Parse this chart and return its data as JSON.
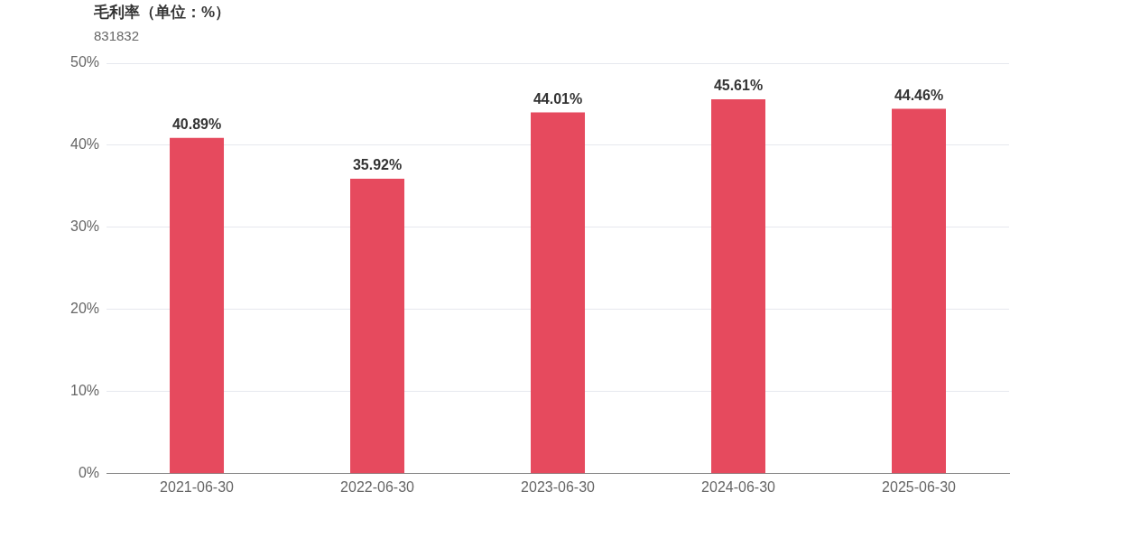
{
  "chart_data": {
    "type": "bar",
    "title": "毛利率（单位：%）",
    "subtitle": "831832",
    "categories": [
      "2021-06-30",
      "2022-06-30",
      "2023-06-30",
      "2024-06-30",
      "2025-06-30"
    ],
    "values": [
      40.89,
      35.92,
      44.01,
      45.61,
      44.46
    ],
    "value_labels": [
      "40.89%",
      "35.92%",
      "44.01%",
      "45.61%",
      "44.46%"
    ],
    "color": "#e64a5e",
    "ylim": [
      0,
      50
    ],
    "yticks": [
      {
        "value": 0,
        "label": "0%"
      },
      {
        "value": 10,
        "label": "10%"
      },
      {
        "value": 20,
        "label": "20%"
      },
      {
        "value": 30,
        "label": "30%"
      },
      {
        "value": 40,
        "label": "40%"
      },
      {
        "value": 50,
        "label": "50%"
      }
    ],
    "grid": "y",
    "legend": false
  }
}
